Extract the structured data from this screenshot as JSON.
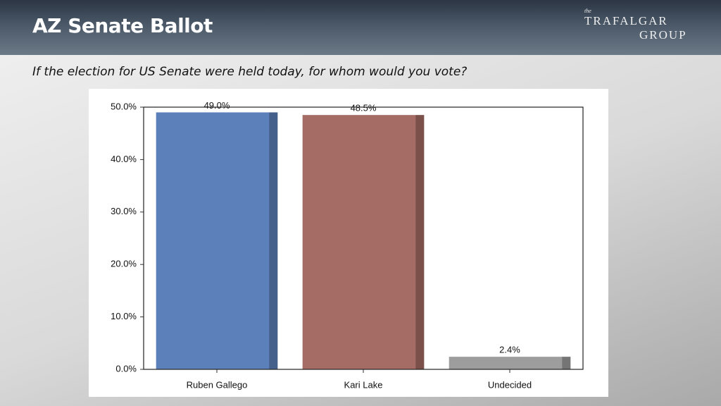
{
  "header": {
    "title": "AZ Senate Ballot",
    "logo": {
      "small": "the",
      "line1": "TRAFALGAR",
      "line2": "GROUP"
    }
  },
  "subtitle": "If the election for US Senate were held today, for whom would you vote?",
  "chart_data": {
    "type": "bar",
    "categories": [
      "Ruben Gallego",
      "Kari Lake",
      "Undecided"
    ],
    "values": [
      49.0,
      48.5,
      2.4
    ],
    "value_labels": [
      "49.0%",
      "48.5%",
      "2.4%"
    ],
    "colors": [
      "#5b80ba",
      "#a56b65",
      "#9d9d9d"
    ],
    "ylim": [
      0,
      50
    ],
    "yticks": [
      {
        "value": 0,
        "label": "0.0%"
      },
      {
        "value": 10,
        "label": "10.0%"
      },
      {
        "value": 20,
        "label": "20.0%"
      },
      {
        "value": 30,
        "label": "30.0%"
      },
      {
        "value": 40,
        "label": "40.0%"
      },
      {
        "value": 50,
        "label": "50.0%"
      }
    ],
    "grid": false
  }
}
